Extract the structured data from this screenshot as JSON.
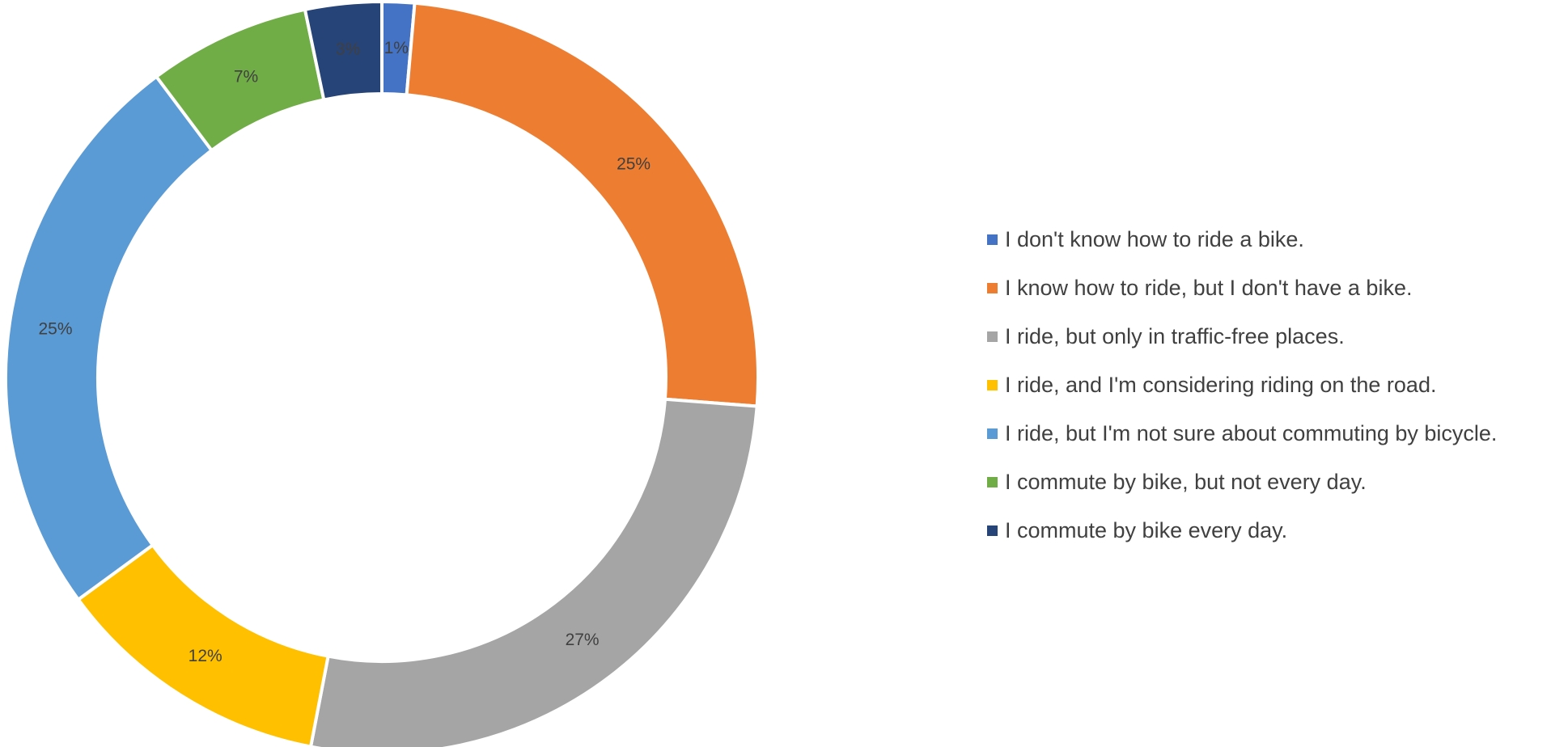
{
  "chart_data": {
    "type": "pie",
    "subtype": "donut",
    "title": "",
    "legend_position": "right",
    "categories": [
      "I don't know how to ride a bike.",
      "I know how to ride, but I don't have a bike.",
      "I ride, but only in traffic-free places.",
      "I ride, and I'm considering riding on the road.",
      "I ride, but I'm not sure about commuting by bicycle.",
      "I commute by bike, but not every day.",
      "I commute by bike every day."
    ],
    "values": [
      1.4,
      25.0,
      27.0,
      12.0,
      25.0,
      7.0,
      3.3
    ],
    "data_labels": [
      "1%",
      "25%",
      "27%",
      "12%",
      "25%",
      "7%",
      "3%"
    ],
    "colors": [
      "#4472C4",
      "#ED7D31",
      "#A5A5A5",
      "#FFC000",
      "#5B9BD5",
      "#70AD47",
      "#264478"
    ]
  }
}
